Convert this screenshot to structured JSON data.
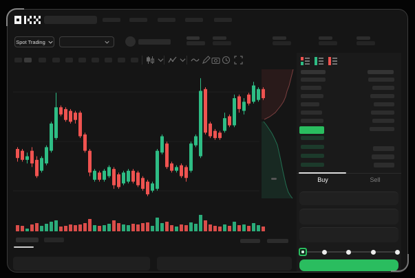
{
  "header": {
    "logo_text": "OKX",
    "market_selector_label": "Spot Trading",
    "nav_placeholder_count": 5,
    "ticker_stat_count": 4
  },
  "chart_toolbar": {
    "timeframe_button_count": 10,
    "icons": [
      "candle-style-icon",
      "chevron-down-icon",
      "indicators-icon",
      "chevron-down-icon",
      "line-tool-icon",
      "draw-icon",
      "camera-icon",
      "history-icon",
      "fullscreen-icon"
    ]
  },
  "colors": {
    "candle_up": "#2ebd85",
    "candle_down": "#ef5350",
    "accent_green": "#2abd5f",
    "bid_row_tint": "#1c3a2b",
    "book_bar_gray": "#2d2d2d"
  },
  "chart_data": {
    "type": "candlestick",
    "title": "",
    "xlabel": "",
    "ylabel": "",
    "price_scale_estimated": [
      30,
      100
    ],
    "gridline_count": 3,
    "candles_ohlc": [
      [
        58,
        59,
        51,
        53
      ],
      [
        57,
        58,
        51,
        52
      ],
      [
        52,
        56,
        50,
        54
      ],
      [
        57,
        59,
        48,
        50
      ],
      [
        52,
        54,
        42,
        43
      ],
      [
        46,
        54,
        45,
        53
      ],
      [
        50,
        60,
        49,
        59
      ],
      [
        57,
        73,
        56,
        72
      ],
      [
        64,
        89,
        63,
        81
      ],
      [
        81,
        82,
        76,
        77
      ],
      [
        80,
        81,
        73,
        74
      ],
      [
        79,
        80,
        72,
        73
      ],
      [
        78,
        79,
        72,
        74
      ],
      [
        78,
        79,
        64,
        65
      ],
      [
        66,
        67,
        56,
        57
      ],
      [
        57,
        58,
        43,
        45
      ],
      [
        41,
        47,
        40,
        46
      ],
      [
        45,
        46,
        40,
        41
      ],
      [
        41,
        47,
        40,
        46
      ],
      [
        43,
        49,
        42,
        48
      ],
      [
        47,
        48,
        36,
        38
      ],
      [
        44,
        45,
        36,
        37
      ],
      [
        39,
        46,
        38,
        45
      ],
      [
        40,
        47,
        39,
        46
      ],
      [
        46,
        47,
        39,
        40
      ],
      [
        45,
        46,
        37,
        38
      ],
      [
        42,
        43,
        35,
        36
      ],
      [
        40,
        41,
        32,
        33
      ],
      [
        35,
        40,
        34,
        39
      ],
      [
        36,
        58,
        35,
        57
      ],
      [
        56,
        66,
        55,
        65
      ],
      [
        61,
        62,
        47,
        48
      ],
      [
        50,
        51,
        45,
        46
      ],
      [
        46,
        49,
        45,
        48
      ],
      [
        49,
        50,
        42,
        43
      ],
      [
        48,
        49,
        40,
        42
      ],
      [
        46,
        62,
        45,
        61
      ],
      [
        60,
        66,
        59,
        65
      ],
      [
        54,
        97,
        53,
        90
      ],
      [
        91,
        92,
        66,
        67
      ],
      [
        72,
        73,
        64,
        65
      ],
      [
        68,
        69,
        63,
        64
      ],
      [
        67,
        68,
        63,
        64
      ],
      [
        68,
        78,
        67,
        75
      ],
      [
        76,
        77,
        70,
        71
      ],
      [
        71,
        88,
        70,
        86
      ],
      [
        87,
        88,
        78,
        80
      ],
      [
        79,
        86,
        77,
        84
      ],
      [
        88,
        89,
        82,
        83
      ],
      [
        84,
        95,
        83,
        93
      ],
      [
        85,
        92,
        84,
        91
      ],
      [
        91,
        92,
        85,
        86
      ]
    ],
    "volume": [
      9,
      8,
      4,
      10,
      12,
      8,
      11,
      14,
      16,
      7,
      8,
      10,
      9,
      10,
      12,
      18,
      9,
      8,
      9,
      11,
      16,
      12,
      10,
      9,
      11,
      10,
      12,
      13,
      8,
      20,
      12,
      14,
      9,
      7,
      10,
      9,
      13,
      11,
      24,
      16,
      10,
      8,
      7,
      10,
      8,
      14,
      9,
      10,
      8,
      12,
      9,
      7
    ]
  },
  "depth": {
    "asks_curve": [
      [
        425,
        100
      ],
      [
        423,
        108
      ],
      [
        421,
        116
      ],
      [
        419,
        124
      ],
      [
        416,
        132
      ],
      [
        414,
        140
      ],
      [
        411,
        147
      ],
      [
        407,
        153
      ],
      [
        403,
        158
      ],
      [
        399,
        163
      ],
      [
        395,
        166
      ],
      [
        391,
        169
      ],
      [
        387,
        171
      ],
      [
        383,
        173
      ]
    ],
    "bids_curve": [
      [
        382,
        176
      ],
      [
        386,
        181
      ],
      [
        390,
        187
      ],
      [
        394,
        193
      ],
      [
        398,
        201
      ],
      [
        402,
        210
      ],
      [
        404,
        219
      ],
      [
        406,
        228
      ],
      [
        408,
        238
      ],
      [
        410,
        248
      ],
      [
        412,
        257
      ],
      [
        414,
        266
      ],
      [
        416,
        273
      ],
      [
        418,
        279
      ],
      [
        421,
        284
      ],
      [
        424,
        288
      ]
    ]
  },
  "orderbook": {
    "view_icons": [
      "book-combined-icon",
      "book-bids-icon",
      "book-asks-icon"
    ],
    "asks_left_widths": [
      36,
      30,
      33,
      27,
      31,
      33
    ],
    "asks_right_widths": [
      38,
      32,
      35,
      30,
      34,
      32,
      36
    ],
    "bids_left_widths": [
      34,
      34,
      34,
      34
    ],
    "bids_right_widths": [
      31,
      33,
      30
    ]
  },
  "trade_panel": {
    "buy_tab": "Buy",
    "sell_tab": "Sell",
    "field_count": 3,
    "amount_slider": {
      "stops": 5,
      "selected_stop": 0
    }
  }
}
